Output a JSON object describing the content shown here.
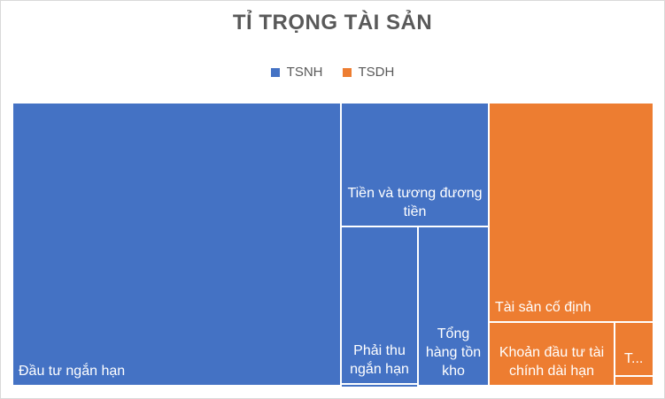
{
  "chart_data": {
    "type": "treemap",
    "title": "TỈ TRỌNG TÀI SẢN",
    "legend": [
      {
        "name": "TSNH",
        "color": "#4472C4"
      },
      {
        "name": "TSDH",
        "color": "#ED7D31"
      }
    ],
    "legend_position": "top",
    "items": [
      {
        "label": "Đầu tư ngắn hạn",
        "group": "TSNH",
        "color": "#4472C4"
      },
      {
        "label": "Tiền và tương đương tiền",
        "group": "TSNH",
        "color": "#4472C4"
      },
      {
        "label": "Phải thu ngắn hạn",
        "group": "TSNH",
        "color": "#4472C4"
      },
      {
        "label": "Tổng hàng tồn kho",
        "group": "TSNH",
        "color": "#4472C4"
      },
      {
        "label": "Tài sản cố định",
        "group": "TSDH",
        "color": "#ED7D31"
      },
      {
        "label": "Khoản đầu tư tài chính dài hạn",
        "group": "TSDH",
        "color": "#ED7D31"
      },
      {
        "label": "T...",
        "group": "TSDH",
        "color": "#ED7D31"
      }
    ]
  }
}
